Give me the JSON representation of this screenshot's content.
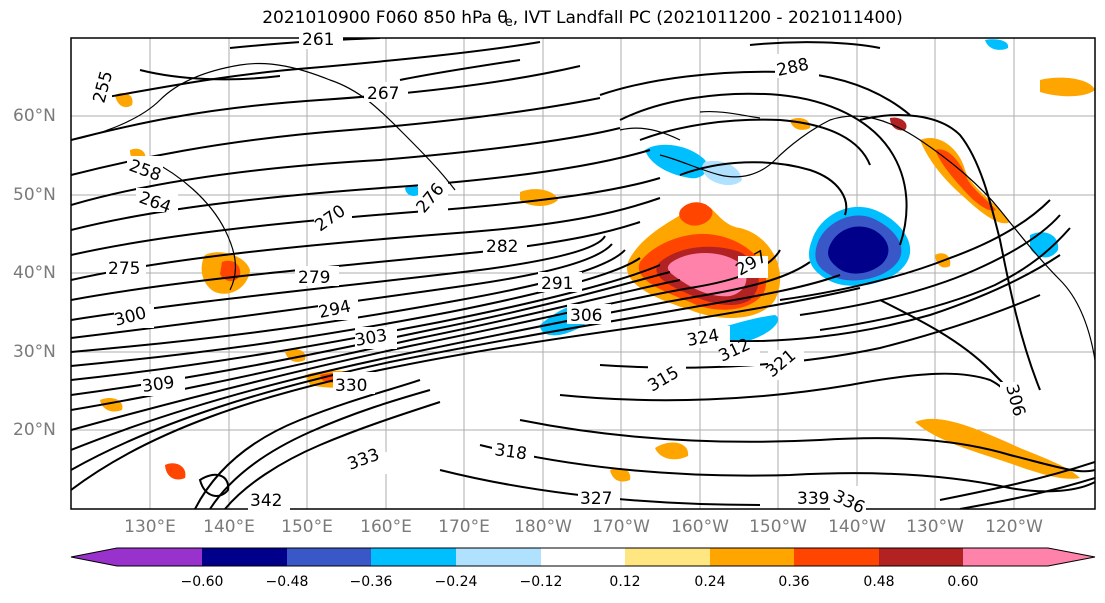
{
  "title": {
    "before": "2021010900 F060 850 hPa θ",
    "subscript": "e",
    "after": ", IVT Landfall PC (2021011200 - 2021011400)"
  },
  "map": {
    "lat_labels": [
      "60°N",
      "50°N",
      "40°N",
      "30°N",
      "20°N"
    ],
    "lon_labels": [
      "130°E",
      "140°E",
      "150°E",
      "160°E",
      "170°E",
      "180°W",
      "170°W",
      "160°W",
      "150°W",
      "140°W",
      "130°W",
      "120°W"
    ],
    "contour_labels": [
      "261",
      "255",
      "267",
      "288",
      "258",
      "264",
      "270",
      "276",
      "282",
      "275",
      "279",
      "291",
      "294",
      "306",
      "297",
      "303",
      "309",
      "300",
      "312",
      "324",
      "321",
      "315",
      "330",
      "318",
      "327",
      "339",
      "336",
      "342",
      "333",
      "306"
    ]
  },
  "colorbar": {
    "ticks": [
      "−0.60",
      "−0.48",
      "−0.36",
      "−0.24",
      "−0.12",
      "0.12",
      "0.24",
      "0.36",
      "0.48",
      "0.60"
    ],
    "colors": [
      "#9932cc",
      "#00008b",
      "#3a57c8",
      "#00bfff",
      "#b0e2ff",
      "#ffffff",
      "#ffe680",
      "#ffa500",
      "#ff4500",
      "#b22222",
      "#ff82ab"
    ]
  }
}
